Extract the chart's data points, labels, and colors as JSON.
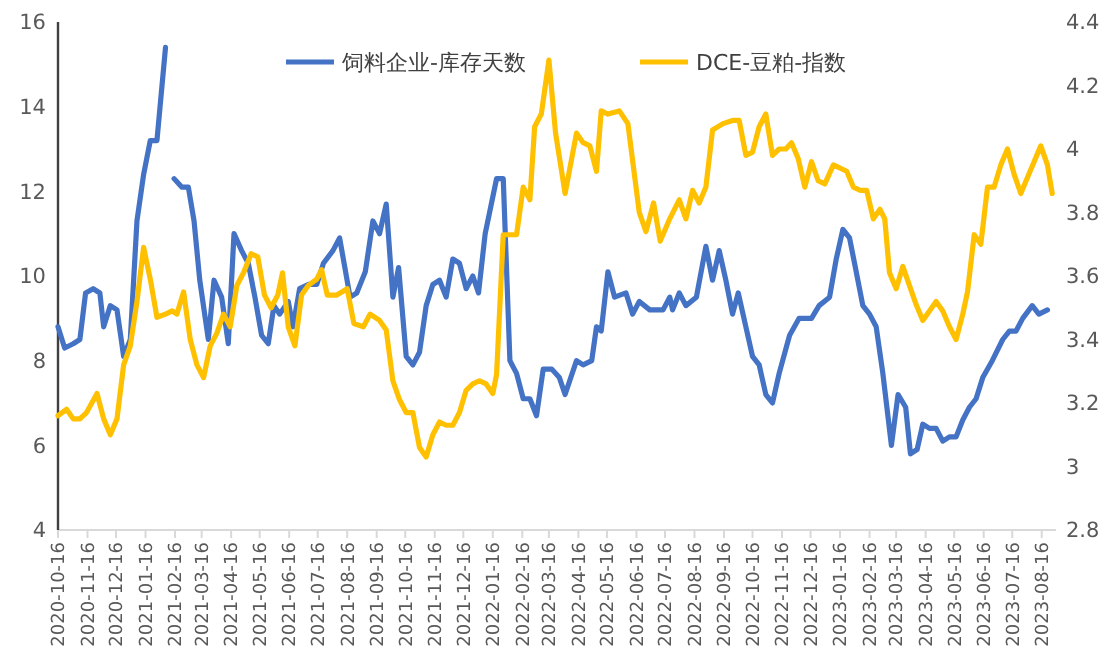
{
  "chart_data": {
    "type": "line",
    "xlim": [
      "2020-10-16",
      "2023-08-31"
    ],
    "xticks": [
      "2020-10-16",
      "2020-11-16",
      "2020-12-16",
      "2021-01-16",
      "2021-02-16",
      "2021-03-16",
      "2021-04-16",
      "2021-05-16",
      "2021-06-16",
      "2021-07-16",
      "2021-08-16",
      "2021-09-16",
      "2021-10-16",
      "2021-11-16",
      "2021-12-16",
      "2022-01-16",
      "2022-02-16",
      "2022-03-16",
      "2022-04-16",
      "2022-05-16",
      "2022-06-16",
      "2022-07-16",
      "2022-08-16",
      "2022-09-16",
      "2022-10-16",
      "2022-11-16",
      "2022-12-16",
      "2023-01-16",
      "2023-02-16",
      "2023-03-16",
      "2023-04-16",
      "2023-05-16",
      "2023-06-16",
      "2023-07-16",
      "2023-08-16"
    ],
    "ylim": [
      4,
      16
    ],
    "yticks": [
      4,
      6,
      8,
      10,
      12,
      14,
      16
    ],
    "y2lim": [
      2.8,
      4.4
    ],
    "y2ticks": [
      {
        "value": 2.8,
        "label": "2.8"
      },
      3,
      3.2,
      3.4,
      3.6,
      3.8,
      4,
      4.2,
      4.4
    ],
    "grid": false,
    "legend": "top",
    "line_style": "solid",
    "marker": "none",
    "series": [
      {
        "name": "饲料企业-库存天数",
        "color": "#4472c4",
        "x": [
          "2020-10-16",
          "2020-10-23",
          "2020-11-01",
          "2020-11-08",
          "2020-11-14",
          "2020-11-22",
          "2020-11-29",
          "2020-12-03",
          "2020-12-10",
          "2020-12-17",
          "2020-12-24",
          "2020-12-31",
          "2021-01-07",
          "2021-01-14",
          "2021-01-21",
          "2021-01-28",
          "2021-02-06",
          "2021-02-11",
          "2021-02-15",
          "2021-02-23",
          "2021-03-02",
          "2021-03-08",
          "2021-03-14",
          "2021-03-23",
          "2021-03-29",
          "2021-04-06",
          "2021-04-13",
          "2021-04-19",
          "2021-04-27",
          "2021-05-04",
          "2021-05-11",
          "2021-05-18",
          "2021-05-25",
          "2021-05-31",
          "2021-06-06",
          "2021-06-15",
          "2021-06-20",
          "2021-06-27",
          "2021-07-06",
          "2021-07-15",
          "2021-07-22",
          "2021-08-01",
          "2021-08-08",
          "2021-08-19",
          "2021-08-26",
          "2021-09-04",
          "2021-09-12",
          "2021-09-19",
          "2021-09-26",
          "2021-10-03",
          "2021-10-09",
          "2021-10-17",
          "2021-10-24",
          "2021-10-31",
          "2021-11-07",
          "2021-11-14",
          "2021-11-21",
          "2021-11-28",
          "2021-12-05",
          "2021-12-12",
          "2021-12-19",
          "2021-12-26",
          "2022-01-01",
          "2022-01-08",
          "2022-01-20",
          "2022-01-27",
          "2022-02-03",
          "2022-02-10",
          "2022-02-17",
          "2022-02-24",
          "2022-03-03",
          "2022-03-10",
          "2022-03-19",
          "2022-03-27",
          "2022-04-02",
          "2022-04-14",
          "2022-04-21",
          "2022-04-30",
          "2022-05-05",
          "2022-05-10",
          "2022-05-17",
          "2022-05-24",
          "2022-06-05",
          "2022-06-12",
          "2022-06-19",
          "2022-06-30",
          "2022-07-14",
          "2022-07-21",
          "2022-07-24",
          "2022-07-31",
          "2022-08-07",
          "2022-08-18",
          "2022-08-28",
          "2022-09-04",
          "2022-09-11",
          "2022-09-18",
          "2022-09-25",
          "2022-10-01",
          "2022-10-09",
          "2022-10-16",
          "2022-10-23",
          "2022-10-30",
          "2022-11-06",
          "2022-11-13",
          "2022-11-24",
          "2022-12-04",
          "2022-12-17",
          "2022-12-25",
          "2023-01-05",
          "2023-01-12",
          "2023-01-19",
          "2023-01-26",
          "2023-02-02",
          "2023-02-09",
          "2023-02-16",
          "2023-02-23",
          "2023-03-02",
          "2023-03-11",
          "2023-03-18",
          "2023-03-26",
          "2023-03-31",
          "2023-04-07",
          "2023-04-13",
          "2023-04-20",
          "2023-04-27",
          "2023-05-04",
          "2023-05-11",
          "2023-05-18",
          "2023-05-25",
          "2023-06-01",
          "2023-06-08",
          "2023-06-15",
          "2023-06-25",
          "2023-07-06",
          "2023-07-13",
          "2023-07-20",
          "2023-07-27",
          "2023-08-06",
          "2023-08-13",
          "2023-08-22"
        ],
        "values": [
          8.8,
          8.3,
          8.4,
          8.5,
          9.6,
          9.7,
          9.6,
          8.8,
          9.3,
          9.2,
          8.1,
          8.5,
          11.3,
          12.4,
          13.2,
          13.2,
          15.4,
          null,
          12.3,
          12.1,
          12.1,
          11.3,
          9.9,
          8.5,
          9.9,
          9.5,
          8.4,
          11,
          10.6,
          10.3,
          9.5,
          8.6,
          8.4,
          9.3,
          9.1,
          9.4,
          8.8,
          9.7,
          9.8,
          9.8,
          10.3,
          10.6,
          10.9,
          9.5,
          9.6,
          10.1,
          11.3,
          11,
          11.7,
          9.5,
          10.2,
          8.1,
          7.9,
          8.2,
          9.3,
          9.8,
          9.9,
          9.5,
          10.4,
          10.3,
          9.7,
          10,
          9.6,
          11,
          12.3,
          12.3,
          8,
          7.7,
          7.1,
          7.1,
          6.7,
          7.8,
          7.8,
          7.6,
          7.2,
          8,
          7.9,
          8,
          8.8,
          8.7,
          10.1,
          9.5,
          9.6,
          9.1,
          9.4,
          9.2,
          9.2,
          9.5,
          9.2,
          9.6,
          9.3,
          9.5,
          10.7,
          9.9,
          10.6,
          9.9,
          9.1,
          9.6,
          8.8,
          8.1,
          7.9,
          7.2,
          7,
          7.7,
          8.6,
          9,
          9,
          9.3,
          9.5,
          10.4,
          11.1,
          10.9,
          10.1,
          9.3,
          9.1,
          8.8,
          7.7,
          6,
          7.2,
          6.9,
          5.8,
          5.9,
          6.5,
          6.4,
          6.4,
          6.1,
          6.2,
          6.2,
          6.6,
          6.9,
          7.1,
          7.6,
          8,
          8.5,
          8.7,
          8.7,
          9,
          9.3,
          9.1,
          9.2
        ]
      },
      {
        "name": "DCE-豆粕-指数",
        "color": "#ffc000",
        "axis": "y2",
        "x": [
          "2020-10-16",
          "2020-10-25",
          "2020-11-01",
          "2020-11-08",
          "2020-11-15",
          "2020-11-26",
          "2020-12-03",
          "2020-12-10",
          "2020-12-17",
          "2020-12-24",
          "2020-12-31",
          "2021-01-07",
          "2021-01-14",
          "2021-01-21",
          "2021-01-28",
          "2021-02-06",
          "2021-02-13",
          "2021-02-18",
          "2021-02-25",
          "2021-03-04",
          "2021-03-11",
          "2021-03-18",
          "2021-03-25",
          "2021-04-01",
          "2021-04-08",
          "2021-04-15",
          "2021-04-22",
          "2021-04-29",
          "2021-05-07",
          "2021-05-14",
          "2021-05-21",
          "2021-05-28",
          "2021-06-04",
          "2021-06-09",
          "2021-06-15",
          "2021-06-22",
          "2021-06-29",
          "2021-07-06",
          "2021-07-15",
          "2021-07-20",
          "2021-07-26",
          "2021-08-05",
          "2021-08-16",
          "2021-08-23",
          "2021-09-02",
          "2021-09-09",
          "2021-09-19",
          "2021-09-26",
          "2021-10-03",
          "2021-10-10",
          "2021-10-17",
          "2021-10-24",
          "2021-10-31",
          "2021-11-07",
          "2021-11-14",
          "2021-11-21",
          "2021-11-28",
          "2021-12-05",
          "2021-12-12",
          "2021-12-19",
          "2021-12-26",
          "2022-01-02",
          "2022-01-09",
          "2022-01-16",
          "2022-01-20",
          "2022-01-27",
          "2022-02-10",
          "2022-02-17",
          "2022-02-24",
          "2022-03-01",
          "2022-03-08",
          "2022-03-16",
          "2022-03-23",
          "2022-04-02",
          "2022-04-14",
          "2022-04-21",
          "2022-04-28",
          "2022-05-05",
          "2022-05-10",
          "2022-05-17",
          "2022-05-29",
          "2022-06-07",
          "2022-06-19",
          "2022-06-26",
          "2022-07-04",
          "2022-07-11",
          "2022-07-21",
          "2022-07-31",
          "2022-08-07",
          "2022-08-14",
          "2022-08-21",
          "2022-08-28",
          "2022-09-04",
          "2022-09-15",
          "2022-09-25",
          "2022-10-02",
          "2022-10-09",
          "2022-10-16",
          "2022-10-23",
          "2022-10-30",
          "2022-11-06",
          "2022-11-13",
          "2022-11-20",
          "2022-11-26",
          "2022-12-03",
          "2022-12-10",
          "2022-12-17",
          "2022-12-24",
          "2022-12-31",
          "2023-01-09",
          "2023-01-23",
          "2023-01-30",
          "2023-02-06",
          "2023-02-13",
          "2023-02-20",
          "2023-02-27",
          "2023-03-04",
          "2023-03-09",
          "2023-03-16",
          "2023-03-23",
          "2023-03-30",
          "2023-04-06",
          "2023-04-13",
          "2023-04-20",
          "2023-04-27",
          "2023-05-04",
          "2023-05-11",
          "2023-05-18",
          "2023-05-25",
          "2023-05-30",
          "2023-06-06",
          "2023-06-13",
          "2023-06-20",
          "2023-06-27",
          "2023-07-04",
          "2023-07-11",
          "2023-07-18",
          "2023-07-25",
          "2023-08-01",
          "2023-08-08",
          "2023-08-15",
          "2023-08-22",
          "2023-08-27"
        ],
        "values": [
          3.16,
          3.18,
          3.15,
          3.15,
          3.17,
          3.23,
          3.15,
          3.1,
          3.15,
          3.32,
          3.38,
          3.52,
          3.69,
          3.59,
          3.47,
          3.48,
          3.49,
          3.48,
          3.55,
          3.4,
          3.32,
          3.28,
          3.38,
          3.42,
          3.48,
          3.44,
          3.57,
          3.61,
          3.67,
          3.66,
          3.54,
          3.5,
          3.54,
          3.61,
          3.44,
          3.38,
          3.54,
          3.57,
          3.59,
          3.62,
          3.54,
          3.54,
          3.56,
          3.45,
          3.44,
          3.48,
          3.46,
          3.43,
          3.27,
          3.21,
          3.17,
          3.17,
          3.06,
          3.03,
          3.1,
          3.14,
          3.13,
          3.13,
          3.17,
          3.24,
          3.26,
          3.27,
          3.26,
          3.23,
          3.29,
          3.73,
          3.73,
          3.88,
          3.84,
          4.07,
          4.11,
          4.28,
          4.05,
          3.86,
          4.05,
          4.02,
          4.01,
          3.93,
          4.12,
          4.11,
          4.12,
          4.08,
          3.8,
          3.74,
          3.83,
          3.71,
          3.78,
          3.84,
          3.78,
          3.87,
          3.83,
          3.88,
          4.06,
          4.08,
          4.09,
          4.09,
          3.98,
          3.99,
          4.07,
          4.11,
          3.98,
          4,
          4,
          4.02,
          3.97,
          3.88,
          3.96,
          3.9,
          3.89,
          3.95,
          3.93,
          3.88,
          3.87,
          3.87,
          3.78,
          3.81,
          3.78,
          3.61,
          3.56,
          3.63,
          3.57,
          3.51,
          3.46,
          3.49,
          3.52,
          3.49,
          3.44,
          3.4,
          3.48,
          3.55,
          3.73,
          3.7,
          3.88,
          3.88,
          3.95,
          4,
          3.92,
          3.86,
          3.91,
          3.96,
          4.01,
          3.95,
          3.86
        ]
      }
    ]
  }
}
